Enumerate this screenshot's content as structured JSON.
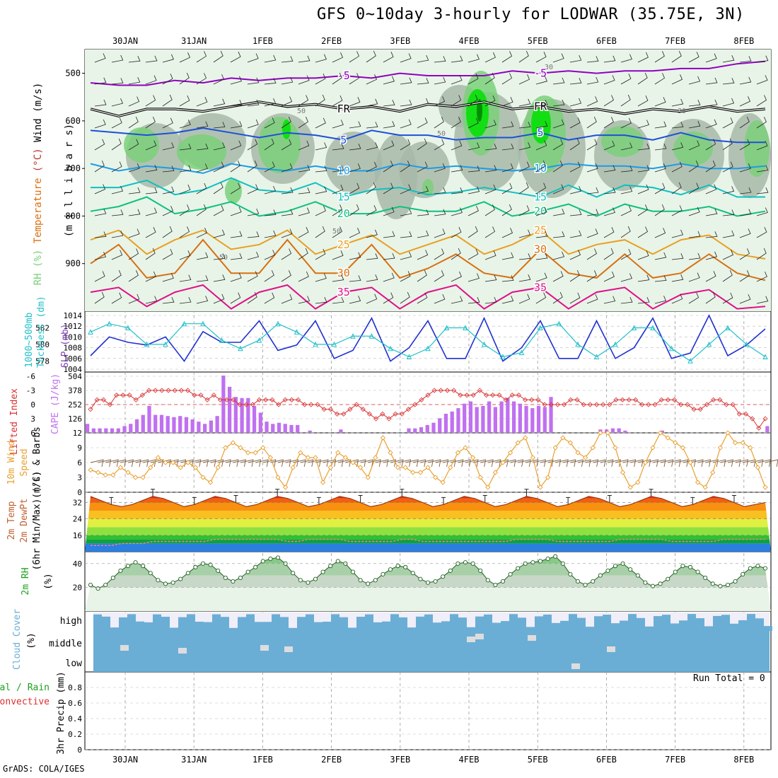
{
  "page": {
    "title": "GFS 0~10day 3-hourly for LODWAR (35.75E, 3N)",
    "footer": "GrADS: COLA/IGES",
    "run_total": "Run Total = 0"
  },
  "colors": {
    "rh_light": "#e8f4e8",
    "rh_mid": "#c6d9c6",
    "rh_gray": "#a8b8a8",
    "rh_green": "#7ad07a",
    "rh_bright": "#00e000",
    "rh_dark": "#008000",
    "iso_m5": "#9000c0",
    "iso_fr": "#000000",
    "iso_5": "#1c50d8",
    "iso_10": "#1c9ce8",
    "iso_15": "#10c0c0",
    "iso_20": "#10c080",
    "iso_25": "#e8a020",
    "iso_30": "#d87010",
    "iso_35": "#e0108a",
    "slp": "#2030d0",
    "thick": "#20c0c8",
    "li": "#d83030",
    "cape": "#c070f0",
    "wind": "#e8a030",
    "barb": "#806040",
    "rh2m": "#88c888",
    "cloud": "#6aaed6"
  },
  "chart_data": [
    {
      "type": "heatmap",
      "panel": "upper-air",
      "x_ticks_top": [
        "30JAN",
        "31JAN",
        "1FEB",
        "2FEB",
        "3FEB",
        "4FEB",
        "5FEB",
        "6FEB",
        "7FEB",
        "8FEB"
      ],
      "ylabel_parts": [
        "RH (%)",
        "Temperature",
        "(°C)",
        "Wind",
        "(m/s)"
      ],
      "ylabel_units": "(m i l l i b a r s)",
      "y_ticks": [
        500,
        600,
        700,
        800,
        900
      ],
      "ylim": [
        1000,
        450
      ],
      "isotherms": [
        {
          "label": "-5",
          "values": [
            520,
            525,
            525,
            515,
            520,
            510,
            515,
            510,
            510,
            505,
            510,
            500,
            505,
            505,
            505,
            495,
            500,
            495,
            500,
            495,
            495,
            490,
            490,
            480,
            475
          ]
        },
        {
          "label": "FR",
          "values": [
            575,
            590,
            575,
            575,
            580,
            570,
            560,
            570,
            565,
            575,
            570,
            580,
            565,
            570,
            560,
            575,
            570,
            580,
            575,
            585,
            575,
            580,
            570,
            580,
            575
          ]
        },
        {
          "label": "5",
          "values": [
            620,
            625,
            630,
            625,
            615,
            625,
            635,
            625,
            630,
            640,
            620,
            630,
            630,
            640,
            635,
            635,
            625,
            640,
            630,
            630,
            640,
            625,
            640,
            645,
            645
          ]
        },
        {
          "label": "10",
          "values": [
            690,
            705,
            695,
            700,
            710,
            690,
            700,
            705,
            695,
            705,
            705,
            690,
            700,
            695,
            700,
            705,
            700,
            690,
            695,
            695,
            700,
            690,
            700,
            700,
            695
          ]
        },
        {
          "label": "15",
          "values": [
            740,
            740,
            725,
            755,
            745,
            720,
            745,
            750,
            730,
            760,
            745,
            740,
            755,
            750,
            740,
            750,
            760,
            735,
            760,
            735,
            740,
            755,
            735,
            760,
            760
          ]
        },
        {
          "label": "20",
          "values": [
            790,
            780,
            760,
            795,
            785,
            770,
            800,
            790,
            770,
            795,
            795,
            780,
            790,
            790,
            770,
            800,
            790,
            775,
            800,
            775,
            790,
            790,
            780,
            800,
            790
          ]
        },
        {
          "label": "25",
          "values": [
            850,
            830,
            880,
            850,
            830,
            870,
            860,
            830,
            880,
            860,
            840,
            880,
            860,
            840,
            880,
            860,
            830,
            880,
            860,
            850,
            880,
            850,
            840,
            880,
            890
          ]
        },
        {
          "label": "30",
          "values": [
            900,
            860,
            930,
            920,
            850,
            920,
            920,
            850,
            920,
            920,
            860,
            930,
            910,
            880,
            920,
            930,
            870,
            920,
            930,
            880,
            930,
            920,
            880,
            920,
            935
          ]
        },
        {
          "label": "35",
          "values": [
            960,
            950,
            990,
            960,
            945,
            995,
            960,
            945,
            995,
            960,
            950,
            995,
            960,
            945,
            995,
            960,
            950,
            995,
            960,
            950,
            995,
            965,
            955,
            995,
            990
          ]
        }
      ],
      "rh_contour_labels": [
        "50",
        "50",
        "50",
        "30",
        "30",
        "50"
      ]
    },
    {
      "type": "line",
      "panel": "slp-thickness",
      "ylabel_left": [
        "1000~500mb",
        "Thckness (dm)"
      ],
      "ylabel_right": "SLP (mb)",
      "y_ticks_left": [
        578,
        580,
        582
      ],
      "y_ticks_right": [
        1004,
        1006,
        1008,
        1010,
        1012,
        1014
      ],
      "ylim_right": [
        1004,
        1014
      ],
      "ylim_left": [
        577,
        583.5
      ],
      "series": [
        {
          "values": [
            1006.5,
            1010,
            1009,
            1008.5,
            1010,
            1005.5,
            1011,
            1009,
            1009,
            1013,
            1007.5,
            1008.5,
            1013,
            1006,
            1007.5,
            1013.5,
            1005.5,
            1008,
            1013,
            1006,
            1006,
            1013.5,
            1005.5,
            1008,
            1013,
            1006,
            1006,
            1013,
            1006,
            1008,
            1013.5,
            1006,
            1007,
            1014,
            1006.5,
            1008.5,
            1011.5
          ]
        },
        {
          "values": [
            581.5,
            582.5,
            582,
            580,
            580,
            582.5,
            582.5,
            580.5,
            579.5,
            580.5,
            582.5,
            581.5,
            580,
            580,
            581,
            581,
            579.5,
            578.5,
            579.5,
            582,
            582,
            580,
            578.5,
            579,
            582,
            582.5,
            580,
            578.5,
            580,
            582,
            582,
            579.5,
            578,
            580,
            582,
            580,
            578.5
          ]
        }
      ]
    },
    {
      "type": "bar",
      "panel": "lifted-index-cape",
      "ylabel_left": "Lifted Index",
      "ylabel_right": "CAPE (J/kg)",
      "y_ticks_left": [
        -6,
        -3,
        0,
        3,
        6
      ],
      "y_ticks_right": [
        126,
        252,
        378,
        504
      ],
      "ylim_right": [
        0,
        504
      ],
      "series": [
        {
          "values": [
            1,
            -1,
            -1,
            0,
            -2,
            -2,
            -2,
            -1,
            -2,
            -3,
            -3,
            -3,
            -3,
            -3,
            -3,
            -3,
            -2,
            -2,
            -1,
            -2,
            -1,
            -1,
            -1,
            0,
            0,
            0,
            -1,
            -1,
            -1,
            0,
            -1,
            -1,
            -1,
            0,
            0,
            0,
            1,
            1,
            2,
            2,
            1,
            0,
            1,
            2,
            3,
            2,
            3,
            2,
            2,
            1,
            0,
            -1,
            -2,
            -3,
            -3,
            -3,
            -3,
            -2,
            -2,
            -2,
            -3,
            -2,
            -2,
            -2,
            -1,
            -2,
            -2,
            -1,
            -1,
            -1,
            0,
            0,
            0,
            0,
            -1,
            -1,
            0,
            0,
            0,
            0,
            0,
            -1,
            -1,
            -1,
            -1,
            0,
            0,
            0,
            -1,
            -1,
            -1,
            0,
            0,
            1,
            1,
            0,
            -1,
            -1,
            0,
            0,
            2,
            2,
            3,
            5,
            3
          ]
        },
        {
          "values": [
            80,
            40,
            40,
            40,
            40,
            40,
            60,
            80,
            120,
            160,
            240,
            160,
            160,
            150,
            140,
            150,
            140,
            120,
            100,
            80,
            110,
            150,
            510,
            410,
            320,
            310,
            310,
            240,
            180,
            100,
            80,
            90,
            80,
            70,
            70,
            0,
            20,
            0,
            0,
            0,
            0,
            30,
            0,
            0,
            0,
            0,
            0,
            0,
            0,
            0,
            0,
            0,
            40,
            40,
            50,
            70,
            90,
            130,
            170,
            190,
            220,
            260,
            280,
            230,
            240,
            280,
            230,
            280,
            310,
            280,
            260,
            240,
            220,
            240,
            230,
            320,
            0,
            0,
            0,
            0,
            0,
            0,
            0,
            30,
            30,
            40,
            40,
            20,
            0,
            0,
            0,
            0,
            0,
            20,
            0,
            0,
            0,
            0,
            0,
            0,
            0,
            0,
            0,
            0,
            0,
            0,
            0,
            0,
            0,
            0,
            60
          ]
        }
      ]
    },
    {
      "type": "line",
      "panel": "wind-10m",
      "ylabel": [
        "10m Wind",
        "Speed",
        "(m/s) & Barbs"
      ],
      "y_ticks": [
        0,
        3,
        6,
        9,
        12
      ],
      "ylim": [
        0,
        12
      ],
      "series": [
        {
          "values": [
            4.5,
            4,
            3.5,
            3.5,
            5,
            4,
            3,
            3,
            5,
            7,
            6,
            6,
            5,
            6,
            5,
            3,
            2,
            5,
            9,
            10,
            9,
            8,
            8,
            9,
            7,
            3,
            1,
            5,
            8,
            7,
            7,
            2,
            5,
            8,
            7,
            6,
            5,
            3,
            7,
            11,
            8,
            5,
            5,
            4,
            4,
            5,
            3,
            2,
            5,
            8,
            9,
            7,
            3,
            1,
            4,
            6,
            8,
            10,
            11,
            7,
            1,
            3,
            9,
            11,
            10,
            8,
            7,
            9,
            12,
            12,
            9,
            4,
            1,
            2,
            6,
            9,
            12,
            11,
            10,
            9,
            6,
            2,
            1,
            4,
            9,
            12,
            10,
            10,
            9,
            5,
            1
          ]
        }
      ]
    },
    {
      "type": "area",
      "panel": "temp-dewpt-2m",
      "ylabel": [
        "2m Temp",
        "2m DewPt",
        "(6hr Min/Max) (°C)"
      ],
      "y_ticks": [
        16,
        24,
        32
      ],
      "ylim": [
        8,
        37
      ],
      "series": [
        {
          "values": [
            35,
            33,
            31,
            30,
            31,
            33,
            35,
            34,
            32,
            30,
            31,
            33,
            35,
            34,
            32,
            30,
            31,
            33,
            35,
            34,
            32,
            30,
            31,
            33,
            35,
            34,
            32,
            30,
            31,
            33,
            35,
            34,
            32,
            30,
            31,
            33,
            35,
            34,
            32,
            30,
            31,
            33,
            35,
            34,
            32,
            30,
            31,
            33,
            35,
            34,
            32,
            30,
            31,
            33,
            35,
            34,
            32,
            30,
            31,
            33,
            35,
            34,
            32,
            30,
            31,
            32
          ]
        },
        {
          "values": [
            11,
            11,
            11,
            12,
            12,
            12,
            13,
            13,
            13,
            13,
            13,
            13,
            14,
            14,
            14,
            14,
            14,
            14,
            14,
            13,
            13,
            14,
            14,
            14,
            14,
            13,
            13,
            13,
            13,
            13,
            14,
            14,
            13,
            13,
            13,
            13,
            13,
            13,
            13,
            13,
            13,
            14,
            14,
            14,
            14,
            13,
            13,
            13,
            13,
            13,
            13,
            14,
            14,
            14,
            14,
            14,
            13,
            13,
            13,
            13,
            13,
            14,
            14,
            14,
            14,
            14
          ]
        }
      ]
    },
    {
      "type": "area",
      "panel": "rh-2m",
      "ylabel": [
        "2m RH",
        "(%)"
      ],
      "y_ticks": [
        20,
        40
      ],
      "ylim": [
        0,
        50
      ],
      "series": [
        {
          "values": [
            22,
            19,
            22,
            28,
            34,
            38,
            41,
            38,
            32,
            26,
            23,
            24,
            27,
            32,
            37,
            40,
            39,
            34,
            28,
            25,
            28,
            33,
            37,
            42,
            44,
            45,
            40,
            32,
            26,
            24,
            27,
            33,
            38,
            42,
            40,
            33,
            26,
            23,
            26,
            31,
            35,
            38,
            37,
            32,
            27,
            24,
            25,
            29,
            34,
            40,
            41,
            40,
            34,
            26,
            22,
            25,
            31,
            36,
            40,
            41,
            42,
            44,
            46,
            40,
            31,
            25,
            22,
            25,
            30,
            34,
            38,
            40,
            35,
            30,
            24,
            21,
            23,
            27,
            33,
            38,
            37,
            33,
            28,
            23,
            21,
            22,
            25,
            31,
            36,
            38,
            36
          ]
        }
      ]
    },
    {
      "type": "heatmap",
      "panel": "cloud-cover",
      "ylabel": [
        "Cloud Cover",
        "(%)"
      ],
      "layers": [
        "high",
        "middle",
        "low"
      ]
    },
    {
      "type": "bar",
      "panel": "precip",
      "ylabel_left": [
        "Total / Rain",
        "Convective"
      ],
      "ylabel": [
        "3hr Precip (mm)"
      ],
      "y_ticks": [
        0,
        0.2,
        0.4,
        0.6,
        0.8
      ],
      "ylim": [
        0,
        1
      ],
      "x_ticks_bottom": [
        "30JAN",
        "31JAN",
        "1FEB",
        "2FEB",
        "3FEB",
        "4FEB",
        "5FEB",
        "6FEB",
        "7FEB",
        "8FEB"
      ]
    }
  ]
}
